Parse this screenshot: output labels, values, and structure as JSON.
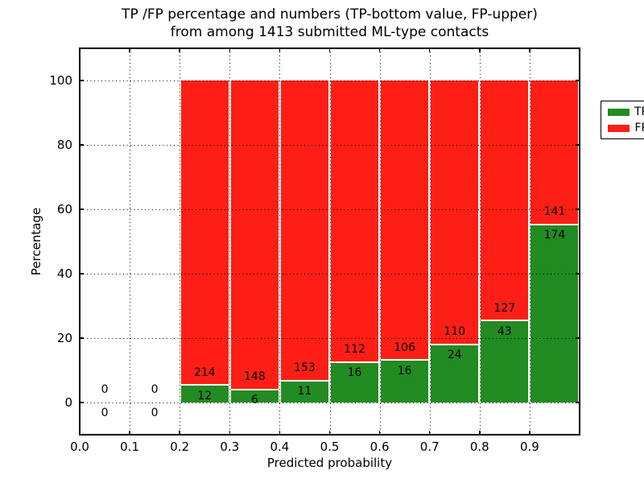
{
  "chart_data": {
    "type": "bar",
    "subtype": "stacked-percentage-histogram",
    "title_lines": [
      "TP /FP percentage and numbers (TP-bottom value, FP-upper)",
      "from among 1413 submitted ML-type contacts"
    ],
    "xlabel": "Predicted probability",
    "ylabel": "Percentage",
    "xlim": [
      0.0,
      1.0
    ],
    "ylim": [
      -10,
      110
    ],
    "xticks": [
      0.0,
      0.1,
      0.2,
      0.3,
      0.4,
      0.5,
      0.6,
      0.7,
      0.8,
      0.9
    ],
    "yticks": [
      0,
      20,
      40,
      60,
      80,
      100
    ],
    "grid": "dotted, drawn above bars",
    "legend_position": "upper right",
    "bin_width": 0.1,
    "bin_starts": [
      0.0,
      0.1,
      0.2,
      0.3,
      0.4,
      0.5,
      0.6,
      0.7,
      0.8,
      0.9
    ],
    "series": [
      {
        "name": "TP",
        "color": "#228b22",
        "counts": [
          0,
          0,
          12,
          6,
          11,
          16,
          16,
          24,
          43,
          174
        ]
      },
      {
        "name": "FP",
        "color": "#fd1f16",
        "counts": [
          0,
          0,
          214,
          148,
          153,
          112,
          106,
          110,
          127,
          141
        ]
      }
    ],
    "tp_percent_by_bin": [
      0,
      0,
      5.3,
      3.9,
      6.7,
      12.5,
      13.1,
      17.9,
      25.3,
      55.2
    ],
    "total_contacts": 1413
  }
}
